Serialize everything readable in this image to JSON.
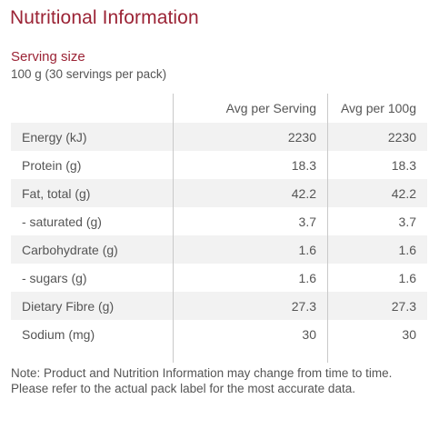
{
  "title": "Nutritional Information",
  "serving": {
    "label": "Serving size",
    "value": "100 g (30 servings per pack)"
  },
  "table": {
    "headers": [
      "",
      "Avg per Serving",
      "Avg per 100g"
    ],
    "rows": [
      {
        "name": "Energy (kJ)",
        "per_serving": "2230",
        "per_100g": "2230"
      },
      {
        "name": "Protein (g)",
        "per_serving": "18.3",
        "per_100g": "18.3"
      },
      {
        "name": "Fat, total (g)",
        "per_serving": "42.2",
        "per_100g": "42.2"
      },
      {
        "name": "- saturated (g)",
        "per_serving": "3.7",
        "per_100g": "3.7"
      },
      {
        "name": "Carbohydrate (g)",
        "per_serving": "1.6",
        "per_100g": "1.6"
      },
      {
        "name": "- sugars (g)",
        "per_serving": "1.6",
        "per_100g": "1.6"
      },
      {
        "name": "Dietary Fibre (g)",
        "per_serving": "27.3",
        "per_100g": "27.3"
      },
      {
        "name": "Sodium (mg)",
        "per_serving": "30",
        "per_100g": "30"
      }
    ]
  },
  "note": "Note: Product and Nutrition Information may change from time to time. Please refer to the actual pack label for the most accurate data.",
  "colors": {
    "accent": "#9b2335",
    "text": "#555555",
    "row_shade": "#f2f2f2",
    "divider": "#c9c9c9"
  }
}
